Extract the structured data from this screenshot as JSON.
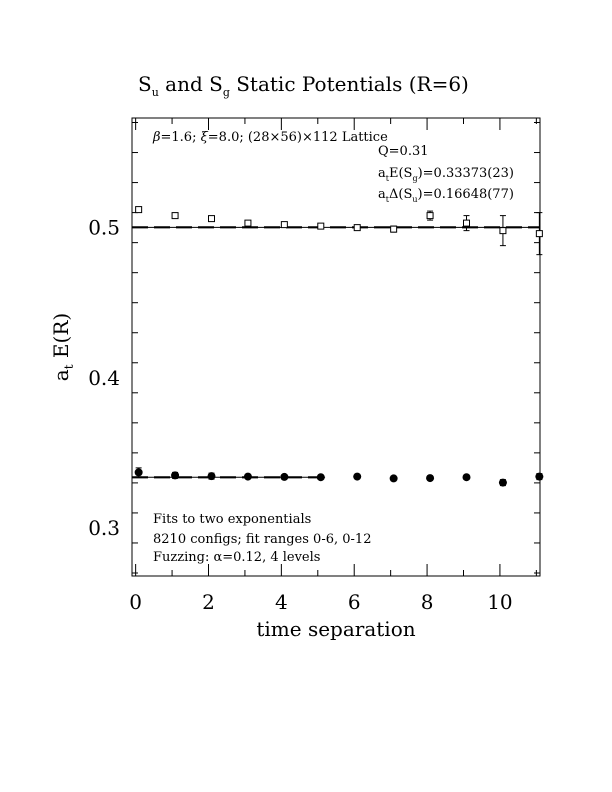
{
  "chart_data": {
    "type": "scatter",
    "title_parts": {
      "s1": "S",
      "sub1": "u",
      "mid": " and ",
      "s2": "S",
      "sub2": "g",
      "rest": " Static Potentials (R=6)"
    },
    "xlabel": "time separation",
    "ylabel_parts": {
      "a": "a",
      "sub": "t",
      "rest": " E(R)"
    },
    "xlim": [
      -0.1,
      11.1
    ],
    "ylim": [
      0.268,
      0.573
    ],
    "x_ticks": [
      0,
      2,
      4,
      6,
      8,
      10
    ],
    "y_ticks": [
      0.3,
      0.4,
      0.5
    ],
    "x_tick_labels": [
      "0",
      "2",
      "4",
      "6",
      "8",
      "10"
    ],
    "y_tick_labels": [
      "0.3",
      "0.4",
      "0.5"
    ],
    "top_annotation": {
      "beta": "β",
      "text": "=1.6; ",
      "xi": "ξ",
      "text2": "=8.0; (28×56)×112 Lattice"
    },
    "fit_stats": {
      "q": "Q=0.31",
      "eg": {
        "a": "a",
        "sub_t": "t",
        "mid": "E(S",
        "sub_g": "g",
        "rest": ")=0.33373(23)"
      },
      "du": {
        "a": "a",
        "sub_t": "t",
        "mid": "Δ(S",
        "sub_u": "u",
        "rest": ")=0.16648(77)"
      }
    },
    "notes": [
      "Fits to two exponentials",
      "8210 configs; fit ranges 0-6, 0-12",
      "Fuzzing: α=0.12, 4 levels"
    ],
    "series": [
      {
        "marker": "open-square",
        "x": [
          0,
          1,
          2,
          3,
          4,
          5,
          6,
          7,
          8,
          9,
          10,
          11
        ],
        "y": [
          0.512,
          0.508,
          0.506,
          0.503,
          0.502,
          0.501,
          0.5,
          0.499,
          0.508,
          0.503,
          0.498,
          0.496
        ],
        "err": [
          0.001,
          0.001,
          0.001,
          0.001,
          0.001,
          0.001,
          0.001,
          0.002,
          0.003,
          0.005,
          0.01,
          0.014
        ]
      },
      {
        "marker": "filled-circle",
        "x": [
          0,
          1,
          2,
          3,
          4,
          5,
          6,
          7,
          8,
          9,
          10,
          11
        ],
        "y": [
          0.337,
          0.335,
          0.3345,
          0.3342,
          0.334,
          0.3338,
          0.3342,
          0.333,
          0.3332,
          0.3338,
          0.3302,
          0.3342
        ],
        "err": [
          0.003,
          0.002,
          0.002,
          0.001,
          0.001,
          0.001,
          0.001,
          0.001,
          0.001,
          0.001,
          0.002,
          0.002
        ]
      }
    ],
    "fit_lines": [
      {
        "y": 0.5002,
        "x_range": [
          -0.1,
          11.1
        ],
        "style": "solid"
      },
      {
        "y": 0.5002,
        "x_range": [
          -0.1,
          11.1
        ],
        "style": "dashed"
      },
      {
        "y": 0.33373,
        "x_range": [
          -0.1,
          5.2
        ],
        "style": "solid"
      },
      {
        "y": 0.33373,
        "x_range": [
          -0.1,
          5.2
        ],
        "style": "dashed"
      }
    ]
  }
}
